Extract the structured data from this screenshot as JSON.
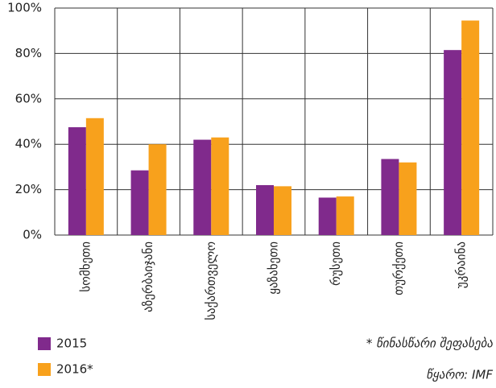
{
  "chart_data": {
    "type": "bar",
    "categories": [
      "სომხეთი",
      "აზერბაიჯანი",
      "საქართველო",
      "ყაზახეთი",
      "რუსეთი",
      "თურქეთი",
      "უკრაინა"
    ],
    "series": [
      {
        "name": "2015",
        "color": "#802a8c",
        "values": [
          47.5,
          28.5,
          42,
          22,
          16.5,
          33.5,
          81.5
        ]
      },
      {
        "name": "2016*",
        "color": "#f8a11c",
        "values": [
          51.5,
          40,
          43,
          21.5,
          17,
          32,
          94.5
        ]
      }
    ],
    "ylim": [
      0,
      100
    ],
    "yticks": [
      {
        "value": 0,
        "label": "0%"
      },
      {
        "value": 20,
        "label": "20%"
      },
      {
        "value": 40,
        "label": "40%"
      },
      {
        "value": 60,
        "label": "60%"
      },
      {
        "value": 80,
        "label": "80%"
      },
      {
        "value": 100,
        "label": "100%"
      }
    ],
    "grid": true,
    "legend": "bottom-left",
    "annotations": [
      "* წინასწარი შეფასება",
      "წყარო: IMF"
    ]
  }
}
